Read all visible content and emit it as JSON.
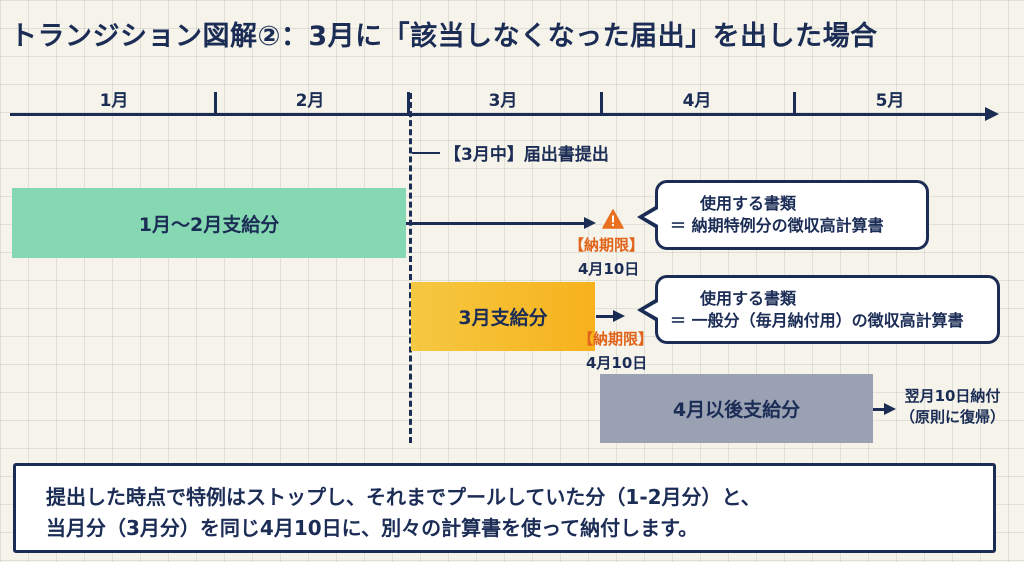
{
  "title": "トランジション図解②：3月に「該当しなくなった届出」を出した場合",
  "months": [
    "1月",
    "2月",
    "3月",
    "4月",
    "5月"
  ],
  "filing_label": "【3月中】届出書提出",
  "bars": {
    "jan_feb": "1月〜2月支給分",
    "march": "3月支給分",
    "april_after": "4月以後支給分"
  },
  "deadlines": {
    "first": {
      "tag": "【納期限】",
      "date": "4月10日"
    },
    "second": {
      "tag": "【納期限】",
      "date": "4月10日"
    }
  },
  "callouts": {
    "special": {
      "line1": "使用する書類",
      "line2": "＝ 納期特例分の徴収高計算書"
    },
    "general": {
      "line1": "使用する書類",
      "line2": "＝ 一般分（毎月納付用）の徴収高計算書"
    }
  },
  "after_note": {
    "line1": "翌月10日納付",
    "line2": "（原則に復帰）"
  },
  "summary": {
    "line1": "提出した時点で特例はストップし、それまでプールしていた分（1-2月分）と、",
    "line2": "当月分（3月分）を同じ4月10日に、別々の計算書を使って納付します。"
  },
  "colors": {
    "navy": "#1b2c55",
    "green_bar": "#86d8b3",
    "orange_bar": "#f7b21c",
    "gray_bar": "#9aa1b3",
    "deadline_orange": "#e0641a"
  },
  "icons": [
    "warning-icon",
    "arrow-right-icon"
  ]
}
